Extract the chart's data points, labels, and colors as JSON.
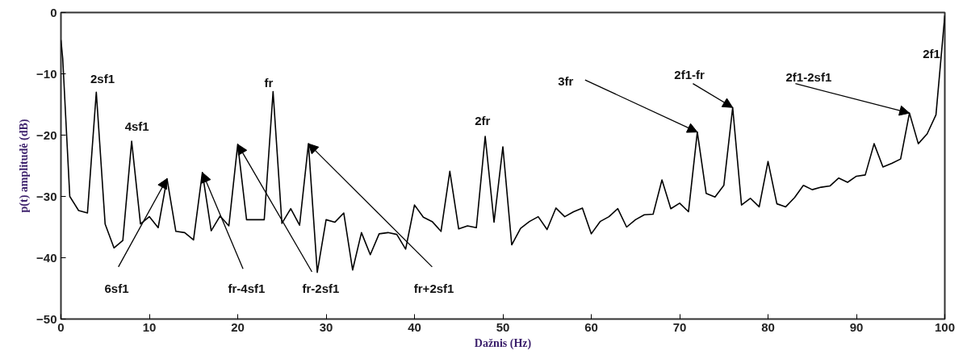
{
  "chart_data": {
    "type": "line",
    "xlabel": "Dažnis (Hz)",
    "ylabel": "p(t) amplitudė (dB)",
    "x": [
      0,
      0.2,
      1,
      2,
      3,
      4,
      5,
      6,
      7,
      8,
      9,
      10,
      11,
      12,
      13,
      14,
      15,
      16,
      17,
      18,
      19,
      20,
      21,
      22,
      23,
      24,
      25,
      26,
      27,
      28,
      29,
      30,
      31,
      32,
      33,
      34,
      35,
      36,
      37,
      38,
      39,
      40,
      41,
      42,
      43,
      44,
      45,
      46,
      47,
      48,
      49,
      50,
      51,
      52,
      53,
      54,
      55,
      56,
      57,
      58,
      59,
      60,
      61,
      62,
      63,
      64,
      65,
      66,
      67,
      68,
      69,
      70,
      71,
      72,
      73,
      74,
      75,
      76,
      77,
      78,
      79,
      80,
      81,
      82,
      83,
      84,
      85,
      86,
      87,
      88,
      89,
      90,
      91,
      92,
      93,
      94,
      95,
      96,
      97,
      98,
      99,
      100
    ],
    "series": [
      {
        "color": "#000000",
        "values": [
          -4.5,
          -7.5,
          -30,
          -32.3,
          -32.7,
          -13,
          -34.5,
          -38.4,
          -37.2,
          -21,
          -34.5,
          -33.3,
          -35.1,
          -27.1,
          -35.7,
          -35.9,
          -37.1,
          -26.1,
          -35.6,
          -33.2,
          -34.8,
          -21.5,
          -33.8,
          -33.8,
          -33.8,
          -12.9,
          -34.4,
          -32,
          -34.7,
          -21.4,
          -42.4,
          -33.8,
          -34.2,
          -32.7,
          -42,
          -35.9,
          -39.5,
          -36.1,
          -35.9,
          -36.2,
          -38.6,
          -31.4,
          -33.4,
          -34.1,
          -35.7,
          -25.9,
          -35.3,
          -34.8,
          -35.1,
          -20.2,
          -34.2,
          -21.9,
          -37.9,
          -35.2,
          -34.1,
          -33.3,
          -35.4,
          -31.9,
          -33.3,
          -32.5,
          -31.9,
          -36.1,
          -34.1,
          -33.3,
          -32,
          -35,
          -33.8,
          -33,
          -32.9,
          -27.3,
          -32,
          -31.1,
          -32.5,
          -19.5,
          -29.5,
          -30.1,
          -28.2,
          -15.5,
          -31.4,
          -30.3,
          -31.7,
          -24.3,
          -31.2,
          -31.7,
          -30.2,
          -28.2,
          -28.9,
          -28.5,
          -28.3,
          -27,
          -27.7,
          -26.7,
          -26.5,
          -21.4,
          -25.2,
          -24.6,
          -23.9,
          -16.4,
          -21.4,
          -19.8,
          -16.7,
          -0.5
        ]
      }
    ],
    "xlim": [
      0,
      100
    ],
    "xticks": [
      0,
      10,
      20,
      30,
      40,
      50,
      60,
      70,
      80,
      90,
      100
    ],
    "ylim": [
      -50,
      0
    ],
    "yticks": [
      -50,
      -40,
      -30,
      -20,
      -10,
      0
    ],
    "grid": false,
    "marker": "none",
    "line_style": "solid",
    "annotations": [
      {
        "text": "2sf1",
        "x": 4,
        "y": -13
      },
      {
        "text": "4sf1",
        "x": 8,
        "y": -21
      },
      {
        "text": "fr",
        "x": 24,
        "y": -12.9
      },
      {
        "text": "2fr",
        "x": 48,
        "y": -20.2
      },
      {
        "text": "2f1",
        "x": 100,
        "y": -0.5
      },
      {
        "text": "6sf1",
        "x": 12,
        "y": -27.1
      },
      {
        "text": "fr-4sf1",
        "x": 16,
        "y": -26.1
      },
      {
        "text": "fr-2sf1",
        "x": 20,
        "y": -21.5
      },
      {
        "text": "fr+2sf1",
        "x": 28,
        "y": -21.4
      },
      {
        "text": "3fr",
        "x": 72,
        "y": -19.5
      },
      {
        "text": "2f1-fr",
        "x": 76,
        "y": -15.5
      },
      {
        "text": "2f1-2sf1",
        "x": 96,
        "y": -16.4
      }
    ]
  }
}
